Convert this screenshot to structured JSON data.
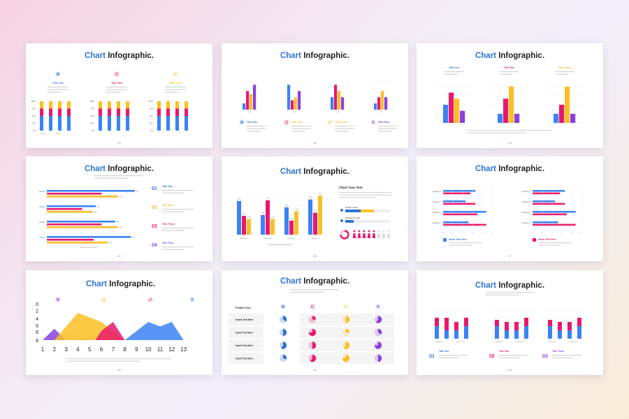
{
  "colors": {
    "blue": "#3b82f6",
    "pink": "#e8196c",
    "yellow": "#fbbf24",
    "purple": "#8b3fe0",
    "accent": "#2f74d6"
  },
  "title_accent": "Chart",
  "title_rest": "Infographic.",
  "desc_short": "A wonderful serenity has taken possession of my entire soul",
  "desc_long": "A wonderful serenity has taken possession of my entire soul like these sweet mornings of spring which I enjoy with my whole heart. I am alone.",
  "s1": {
    "page": "22",
    "titles": [
      "Title One",
      "Title Two",
      "Title Three"
    ],
    "icons": [
      "grid-icon",
      "database-icon",
      "pencil-icon"
    ],
    "yticks": [
      "100%",
      "75%",
      "50%",
      "25%",
      "0%"
    ],
    "groups": [
      [
        "Area",
        "Three"
      ],
      [
        "",
        ""
      ],
      [
        "",
        ""
      ]
    ],
    "chart_data": {
      "type": "bar",
      "stacked": true,
      "series": [
        {
          "name": "",
          "values": [
            50,
            50,
            50,
            50
          ]
        },
        {
          "name": "",
          "values": [
            25,
            25,
            25,
            25
          ]
        },
        {
          "name": "",
          "values": [
            25,
            25,
            25,
            25
          ]
        }
      ]
    }
  },
  "s2": {
    "page": "23",
    "titles": [
      "Title One",
      "Title Two",
      "Title Three",
      "Title Four"
    ],
    "icons": [
      "grid-icon",
      "database-icon",
      "pencil-icon",
      "user-icon"
    ],
    "chart_data": {
      "type": "bar",
      "groups": [
        [
          1,
          3,
          2.5,
          4
        ],
        [
          4,
          1.5,
          2,
          3
        ],
        [
          2,
          4,
          3,
          2
        ],
        [
          1,
          2,
          3,
          2
        ]
      ]
    }
  },
  "s3": {
    "page": "24",
    "titles": [
      "Title One",
      "Title Two",
      "Title Three"
    ],
    "chart_data": {
      "type": "bar",
      "groups": [
        [
          3,
          5,
          4,
          2
        ],
        [
          1.5,
          4,
          6,
          1.5
        ],
        [
          1.5,
          3,
          6,
          1.5
        ]
      ]
    }
  },
  "s4": {
    "page": "25",
    "nums": [
      "01",
      "02",
      "03",
      "04"
    ],
    "titles": [
      "Title One",
      "Title Two",
      "Title Three",
      "Title Four"
    ],
    "legend": [
      "Series 1",
      "Series 2"
    ],
    "cats": [
      "Categ 4",
      "Categ 3",
      "Categ 2",
      "Categ 1"
    ],
    "chart_data": {
      "type": "hbar",
      "series1": [
        4.5,
        2.5,
        3.5,
        4.3
      ],
      "series2": [
        2.8,
        1.8,
        2.8,
        2.4
      ],
      "labels1": [
        "4.5",
        "2.5",
        "3.5",
        "4.3"
      ],
      "labels2": [
        "2.8",
        "1.8",
        "2.8",
        "2.4"
      ]
    }
  },
  "s5": {
    "page": "26",
    "side_title": "Chart Your Text",
    "single": "Single Female",
    "marriage": "Marriage Female",
    "legend": [
      "Series 1",
      "Series 2",
      "Series 3"
    ],
    "cats": [
      "Category 1",
      "Category 2",
      "Category 3",
      "Category 4"
    ],
    "chart_data": {
      "type": "bar",
      "groups": [
        [
          4.3,
          2.4,
          2
        ],
        [
          2.5,
          4.4,
          2
        ],
        [
          3.5,
          1.8,
          3
        ],
        [
          4.5,
          2.8,
          5
        ]
      ]
    }
  },
  "s6": {
    "page": "27",
    "cats": [
      "Category 4",
      "Category 3",
      "Category 2",
      "Category 1"
    ],
    "titles": [
      "Insert Title Here",
      "Insert Title Here"
    ],
    "xt": [
      "0",
      "1",
      "2",
      "3",
      "4",
      "5"
    ]
  },
  "s7": {
    "page": "30",
    "yticks": [
      "8",
      "6",
      "5",
      "4",
      "2",
      "0"
    ],
    "xticks": [
      "1",
      "2",
      "3",
      "4",
      "5",
      "6",
      "7",
      "8",
      "9",
      "10",
      "11",
      "12",
      "13"
    ],
    "icons": [
      "grid-icon",
      "database-icon",
      "pencil-icon",
      "user-icon"
    ]
  },
  "s8": {
    "page": "29",
    "header": "Product Text",
    "rows": [
      "Insert Text Here",
      "Insert Text Here",
      "Insert Text Here",
      "Insert Text Here"
    ],
    "icons": [
      "grid-icon",
      "database-icon",
      "pencil-icon",
      "user-icon"
    ],
    "pct": [
      [
        0.35,
        0.25,
        0.5,
        0.6
      ],
      [
        0.5,
        0.75,
        0.25,
        0.35
      ],
      [
        0.6,
        0.5,
        0.6,
        0.75
      ],
      [
        0.3,
        0.6,
        0.75,
        0.5
      ]
    ]
  },
  "s9": {
    "page": "28",
    "nums": [
      "01",
      "02",
      "03"
    ],
    "titles": [
      "Title One",
      "Title Two",
      "Title Three"
    ],
    "cats": [
      "Category 1",
      "Category 3"
    ],
    "chart_data": {
      "type": "bar",
      "stacked": true,
      "groups": [
        [
          [
            3,
            2
          ],
          [
            2,
            3
          ],
          [
            2,
            2
          ],
          [
            3,
            2
          ]
        ],
        [
          [
            3,
            1.5
          ],
          [
            2,
            2
          ],
          [
            2,
            2
          ],
          [
            3,
            2
          ]
        ],
        [
          [
            3,
            1.5
          ],
          [
            2,
            2
          ],
          [
            2,
            2
          ],
          [
            3,
            2
          ]
        ]
      ]
    }
  }
}
